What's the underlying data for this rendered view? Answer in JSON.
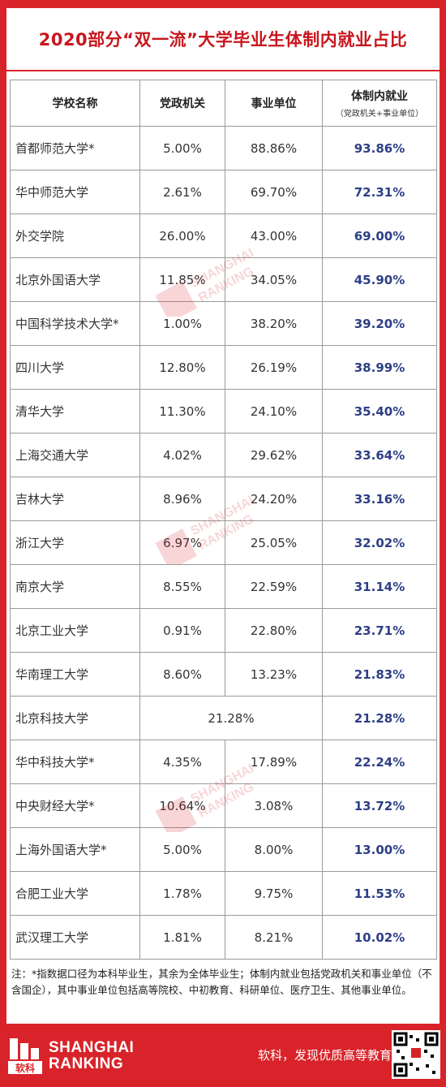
{
  "title": "2020部分“双一流”大学毕业生体制内就业占比",
  "table": {
    "headers": [
      "学校名称",
      "党政机关",
      "事业单位",
      "体制内就业"
    ],
    "header_sub": "（党政机关+事业单位）",
    "rows": [
      {
        "name": "首都师范大学*",
        "gov": "5.00%",
        "inst": "88.86%",
        "total": "93.86%"
      },
      {
        "name": "华中师范大学",
        "gov": "2.61%",
        "inst": "69.70%",
        "total": "72.31%"
      },
      {
        "name": "外交学院",
        "gov": "26.00%",
        "inst": "43.00%",
        "total": "69.00%"
      },
      {
        "name": "北京外国语大学",
        "gov": "11.85%",
        "inst": "34.05%",
        "total": "45.90%"
      },
      {
        "name": "中国科学技术大学*",
        "gov": "1.00%",
        "inst": "38.20%",
        "total": "39.20%"
      },
      {
        "name": "四川大学",
        "gov": "12.80%",
        "inst": "26.19%",
        "total": "38.99%"
      },
      {
        "name": "清华大学",
        "gov": "11.30%",
        "inst": "24.10%",
        "total": "35.40%"
      },
      {
        "name": "上海交通大学",
        "gov": "4.02%",
        "inst": "29.62%",
        "total": "33.64%"
      },
      {
        "name": "吉林大学",
        "gov": "8.96%",
        "inst": "24.20%",
        "total": "33.16%"
      },
      {
        "name": "浙江大学",
        "gov": "6.97%",
        "inst": "25.05%",
        "total": "32.02%"
      },
      {
        "name": "南京大学",
        "gov": "8.55%",
        "inst": "22.59%",
        "total": "31.14%"
      },
      {
        "name": "北京工业大学",
        "gov": "0.91%",
        "inst": "22.80%",
        "total": "23.71%"
      },
      {
        "name": "华南理工大学",
        "gov": "8.60%",
        "inst": "13.23%",
        "total": "21.83%"
      },
      {
        "name": "北京科技大学",
        "merged": "21.28%",
        "total": "21.28%"
      },
      {
        "name": "华中科技大学*",
        "gov": "4.35%",
        "inst": "17.89%",
        "total": "22.24%"
      },
      {
        "name": "中央财经大学*",
        "gov": "10.64%",
        "inst": "3.08%",
        "total": "13.72%"
      },
      {
        "name": "上海外国语大学*",
        "gov": "5.00%",
        "inst": "8.00%",
        "total": "13.00%"
      },
      {
        "name": "合肥工业大学",
        "gov": "1.78%",
        "inst": "9.75%",
        "total": "11.53%"
      },
      {
        "name": "武汉理工大学",
        "gov": "1.81%",
        "inst": "8.21%",
        "total": "10.02%"
      }
    ]
  },
  "note": "注：*指数据口径为本科毕业生，其余为全体毕业生；体制内就业包括党政机关和事业单位（不含国企），其中事业单位包括高等院校、中初教育、科研单位、医疗卫生、其他事业单位。",
  "footer": {
    "logo_text": "软科",
    "brand_line1": "SHANGHAI",
    "brand_line2": "RANKING",
    "slogan": "软科，发现优质高等教育"
  },
  "watermark": {
    "line1": "SHANGHAI",
    "line2": "RANKING"
  },
  "colors": {
    "brand_red": "#d9232a",
    "total_blue": "#2d3f86"
  }
}
